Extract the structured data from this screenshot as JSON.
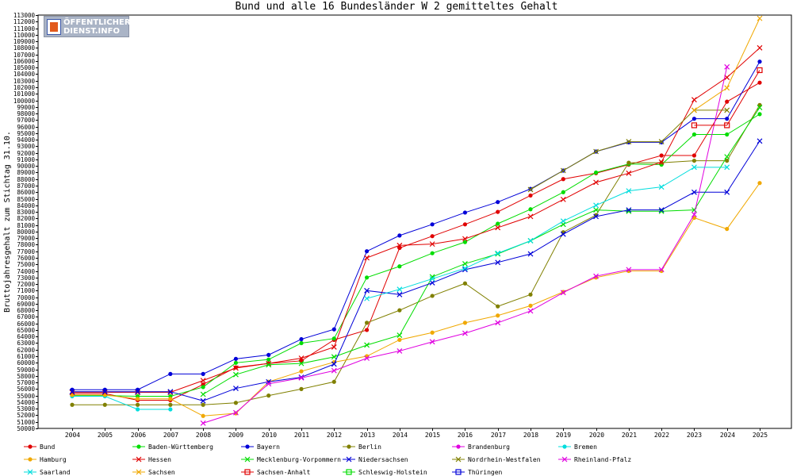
{
  "chart_data": {
    "type": "line",
    "title": "Bund und alle 16 Bundesländer W 2 gemitteltes Gehalt",
    "ylabel": "Bruttojahresgehalt zum Stichtag 31.10.",
    "xlabel": "",
    "ylim": [
      50000,
      113000
    ],
    "ytick_step": 1000,
    "grid": false,
    "legend_position": "bottom",
    "categories": [
      "2004",
      "2005",
      "2006",
      "2007",
      "2008",
      "2009",
      "2010",
      "2011",
      "2012",
      "2013",
      "2014",
      "2015",
      "2016",
      "2017",
      "2018",
      "2019",
      "2020",
      "2021",
      "2022",
      "2023",
      "2024",
      "2025"
    ],
    "series": [
      {
        "name": "Bund",
        "color": "#e00000",
        "marker": "dot",
        "values": [
          55300,
          55300,
          54300,
          54300,
          56700,
          59300,
          59900,
          60300,
          63500,
          65000,
          77500,
          79300,
          81100,
          83000,
          85500,
          88000,
          88900,
          90200,
          91600,
          91600,
          99800,
          102700
        ]
      },
      {
        "name": "Baden-Württemberg",
        "color": "#00dd00",
        "marker": "dot",
        "values": [
          55000,
          55000,
          54900,
          54900,
          56300,
          60000,
          60500,
          63000,
          63700,
          73000,
          74700,
          76700,
          78400,
          81200,
          83400,
          86000,
          89000,
          90300,
          90200,
          94800,
          94800,
          97900
        ]
      },
      {
        "name": "Bayern",
        "color": "#0000d8",
        "marker": "dot",
        "values": [
          55900,
          55900,
          55900,
          58300,
          58300,
          60600,
          61200,
          63600,
          65100,
          77000,
          79400,
          81100,
          82900,
          84500,
          86500,
          89300,
          92200,
          93600,
          93600,
          97200,
          97200,
          105900
        ]
      },
      {
        "name": "Berlin",
        "color": "#808000",
        "marker": "dot",
        "values": [
          53600,
          53600,
          53600,
          53600,
          53600,
          53900,
          55000,
          56000,
          57100,
          66100,
          68000,
          70200,
          72100,
          68600,
          70400,
          79900,
          82500,
          90500,
          90500,
          90800,
          90800,
          99300
        ]
      },
      {
        "name": "Brandenburg",
        "color": "#e000e0",
        "marker": "dot",
        "values": null
      },
      {
        "name": "Bremen",
        "color": "#00dddd",
        "marker": "dot",
        "values": [
          54900,
          54900,
          52900,
          52900,
          null,
          null,
          null,
          null,
          null,
          null,
          null,
          null,
          null,
          null,
          null,
          null,
          null,
          null,
          null,
          null,
          null,
          null
        ]
      },
      {
        "name": "Hamburg",
        "color": "#f0a800",
        "marker": "dot",
        "values": [
          55100,
          55100,
          54500,
          54500,
          51900,
          52300,
          57100,
          58700,
          60100,
          61000,
          63500,
          64600,
          66100,
          67200,
          68700,
          70800,
          73000,
          74000,
          74000,
          82100,
          80400,
          87400
        ]
      },
      {
        "name": "Hessen",
        "color": "#e00000",
        "marker": "x",
        "values": [
          55500,
          55500,
          55500,
          55500,
          57300,
          59200,
          59900,
          60700,
          62400,
          76000,
          77900,
          78100,
          78900,
          80600,
          82300,
          84900,
          87500,
          88900,
          90600,
          100100,
          103500,
          108000
        ]
      },
      {
        "name": "Mecklenburg-Vorpommern",
        "color": "#00dd00",
        "marker": "x",
        "values": [
          null,
          null,
          null,
          null,
          55200,
          58200,
          59700,
          59900,
          60900,
          62700,
          64200,
          73100,
          75100,
          76600,
          78600,
          81100,
          83300,
          83100,
          83100,
          83300,
          91400,
          98900
        ]
      },
      {
        "name": "Niedersachsen",
        "color": "#0000d8",
        "marker": "x",
        "values": [
          55600,
          55600,
          55600,
          55600,
          54200,
          56100,
          57100,
          57800,
          59800,
          71000,
          70400,
          72200,
          74200,
          75300,
          76600,
          79600,
          82300,
          83300,
          83300,
          86000,
          86000,
          93800
        ]
      },
      {
        "name": "Nordrhein-Westfalen",
        "color": "#808000",
        "marker": "x",
        "values": [
          null,
          null,
          null,
          null,
          null,
          null,
          null,
          null,
          null,
          null,
          null,
          null,
          null,
          null,
          86400,
          89300,
          92200,
          93700,
          93700,
          98500,
          98500,
          null
        ]
      },
      {
        "name": "Rheinland-Pfalz",
        "color": "#e000e0",
        "marker": "x",
        "values": [
          null,
          null,
          null,
          null,
          50800,
          52400,
          56800,
          57700,
          58800,
          60700,
          61800,
          63200,
          64500,
          66100,
          67900,
          70700,
          73200,
          74200,
          74200,
          82600,
          105100,
          null
        ]
      },
      {
        "name": "Saarland",
        "color": "#00dddd",
        "marker": "x",
        "values": [
          null,
          null,
          null,
          null,
          null,
          null,
          null,
          null,
          null,
          69800,
          71200,
          72800,
          74400,
          76700,
          78600,
          81600,
          84000,
          86200,
          86800,
          89800,
          89800,
          null
        ]
      },
      {
        "name": "Sachsen",
        "color": "#f0a800",
        "marker": "x",
        "values": [
          null,
          null,
          null,
          null,
          null,
          null,
          null,
          null,
          null,
          null,
          null,
          null,
          null,
          null,
          null,
          null,
          null,
          null,
          null,
          98500,
          101900,
          112500
        ]
      },
      {
        "name": "Sachsen-Anhalt",
        "color": "#e00000",
        "marker": "square",
        "values": [
          null,
          null,
          null,
          null,
          null,
          null,
          null,
          null,
          null,
          null,
          null,
          null,
          null,
          null,
          null,
          null,
          null,
          null,
          null,
          96200,
          96200,
          104600
        ]
      },
      {
        "name": "Schleswig-Holstein",
        "color": "#00dd00",
        "marker": "square",
        "values": [
          null,
          null,
          null,
          null,
          null,
          null,
          null,
          null,
          null,
          null,
          null,
          null,
          null,
          null,
          null,
          null,
          null,
          null,
          null,
          null,
          null,
          null
        ]
      },
      {
        "name": "Thüringen",
        "color": "#0000d8",
        "marker": "square",
        "values": [
          null,
          null,
          null,
          null,
          null,
          null,
          null,
          null,
          null,
          null,
          null,
          null,
          null,
          null,
          null,
          null,
          null,
          null,
          null,
          null,
          null,
          null
        ]
      }
    ]
  },
  "logo": {
    "line1": "ÖFFENTLICHER",
    "line2": "DIENST.INFO"
  }
}
